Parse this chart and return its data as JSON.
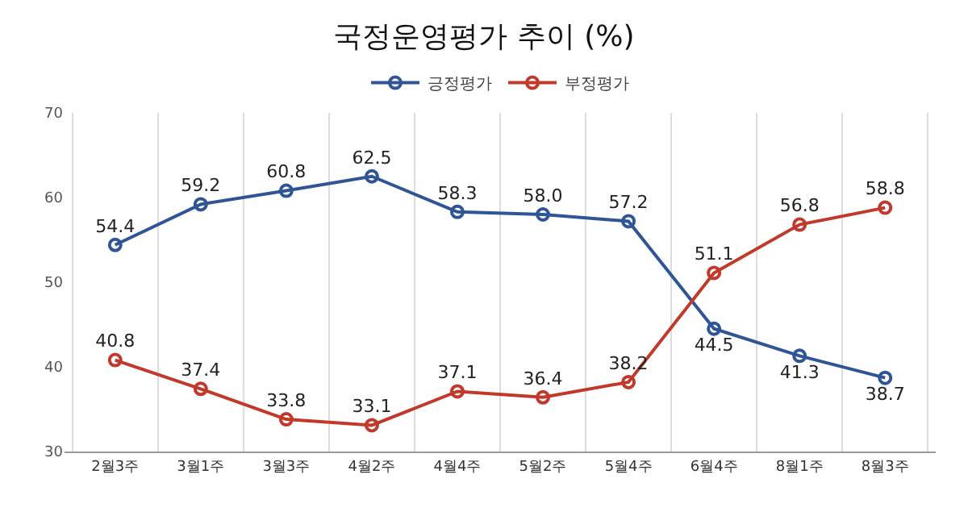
{
  "chart_data": {
    "type": "line",
    "title": "국정운영평가 추이 (%)",
    "categories": [
      "2월3주",
      "3월1주",
      "3월3주",
      "4월2주",
      "4월4주",
      "5월2주",
      "5월4주",
      "6월4주",
      "8월1주",
      "8월3주"
    ],
    "series": [
      {
        "name": "긍정평가",
        "color": "#2f5597",
        "values": [
          54.4,
          59.2,
          60.8,
          62.5,
          58.3,
          58.0,
          57.2,
          44.5,
          41.3,
          38.7
        ],
        "value_labels": [
          "54.4",
          "59.2",
          "60.8",
          "62.5",
          "58.3",
          "58.0",
          "57.2",
          "44.5",
          "41.3",
          "38.7"
        ]
      },
      {
        "name": "부정평가",
        "color": "#c0392b",
        "values": [
          40.8,
          37.4,
          33.8,
          33.1,
          37.1,
          36.4,
          38.2,
          51.1,
          56.8,
          58.8
        ],
        "value_labels": [
          "40.8",
          "37.4",
          "33.8",
          "33.1",
          "37.1",
          "36.4",
          "38.2",
          "51.1",
          "56.8",
          "58.8"
        ]
      }
    ],
    "ylim": [
      30,
      70
    ],
    "yticks": [
      30,
      40,
      50,
      60,
      70
    ],
    "grid": "x",
    "legend": "top",
    "marker": "circle",
    "line_style": "solid"
  }
}
